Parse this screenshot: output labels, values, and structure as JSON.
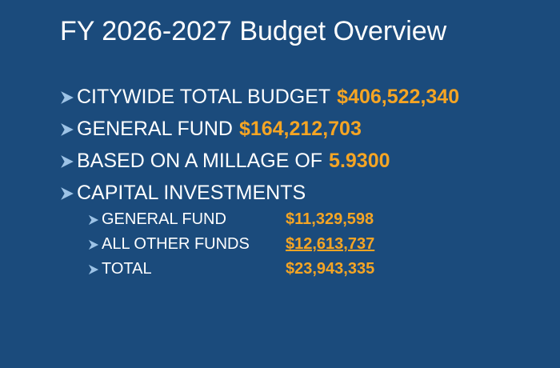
{
  "title": "FY 2026-2027 Budget Overview",
  "bullets": [
    {
      "label": "CITYWIDE TOTAL BUDGET",
      "value": "$406,522,340"
    },
    {
      "label": "GENERAL FUND",
      "value": "$164,212,703"
    },
    {
      "label": "BASED ON A MILLAGE OF",
      "value": "5.9300"
    },
    {
      "label": "CAPITAL INVESTMENTS"
    }
  ],
  "sub_bullets": [
    {
      "label": "GENERAL FUND",
      "value": "$11,329,598"
    },
    {
      "label": "ALL OTHER FUNDS",
      "value": "$12,613,737"
    },
    {
      "label": "TOTAL",
      "value": "$23,943,335"
    }
  ]
}
